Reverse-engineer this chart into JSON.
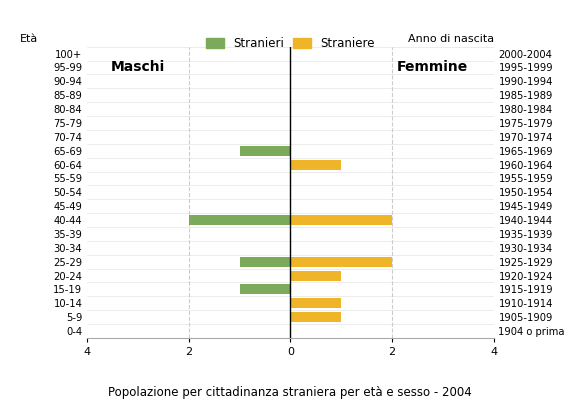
{
  "age_groups": [
    "100+",
    "95-99",
    "90-94",
    "85-89",
    "80-84",
    "75-79",
    "70-74",
    "65-69",
    "60-64",
    "55-59",
    "50-54",
    "45-49",
    "40-44",
    "35-39",
    "30-34",
    "25-29",
    "20-24",
    "15-19",
    "10-14",
    "5-9",
    "0-4"
  ],
  "birth_years": [
    "1904 o prima",
    "1905-1909",
    "1910-1914",
    "1915-1919",
    "1920-1924",
    "1925-1929",
    "1930-1934",
    "1935-1939",
    "1940-1944",
    "1945-1949",
    "1950-1954",
    "1955-1959",
    "1960-1964",
    "1965-1969",
    "1970-1974",
    "1975-1979",
    "1980-1984",
    "1985-1989",
    "1990-1994",
    "1995-1999",
    "2000-2004"
  ],
  "males": [
    0,
    0,
    0,
    0,
    0,
    0,
    0,
    1,
    0,
    0,
    0,
    0,
    2,
    0,
    0,
    1,
    0,
    1,
    0,
    0,
    0
  ],
  "females": [
    0,
    0,
    0,
    0,
    0,
    0,
    0,
    0,
    1,
    0,
    0,
    0,
    2,
    0,
    0,
    2,
    1,
    0,
    1,
    1,
    0
  ],
  "male_color": "#7aaa5a",
  "female_color": "#f0b429",
  "legend_male": "Stranieri",
  "legend_female": "Straniere",
  "title": "Popolazione per cittadinanza straniera per età e sesso - 2004",
  "xlabel_left": "Età",
  "xlabel_right": "Anno di nascita",
  "label_males": "Maschi",
  "label_females": "Femmine",
  "xlim": 4,
  "background_color": "#ffffff",
  "grid_color": "#cccccc",
  "grid_color2": "#dddddd"
}
